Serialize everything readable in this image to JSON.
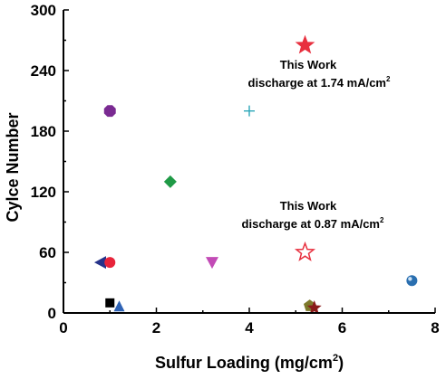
{
  "chart_data": {
    "type": "scatter",
    "title": "",
    "xlabel": "Sulfur Loading (mg/cm",
    "xlabel_sup": "2",
    "xlabel_end": ")",
    "ylabel": "Cylce Number",
    "xlim": [
      0,
      8
    ],
    "ylim": [
      0,
      300
    ],
    "x_ticks": [
      0,
      2,
      4,
      6,
      8
    ],
    "y_ticks": [
      0,
      60,
      120,
      180,
      240,
      300
    ],
    "grid": false,
    "legend": "none",
    "points": [
      {
        "x": 5.2,
        "y": 265,
        "marker": "star",
        "color": "#e8303f",
        "filled": true
      },
      {
        "x": 4.0,
        "y": 200,
        "marker": "plus",
        "color": "#2aa6b8",
        "filled": true
      },
      {
        "x": 1.0,
        "y": 200,
        "marker": "octagon",
        "color": "#7a2a92",
        "filled": true
      },
      {
        "x": 2.3,
        "y": 130,
        "marker": "diamond",
        "color": "#1f9a46",
        "filled": true
      },
      {
        "x": 5.2,
        "y": 60,
        "marker": "star",
        "color": "#e8303f",
        "filled": false
      },
      {
        "x": 0.8,
        "y": 50,
        "marker": "triangle-left",
        "color": "#26338a",
        "filled": true
      },
      {
        "x": 1.0,
        "y": 50,
        "marker": "circle",
        "color": "#e8243a",
        "filled": true
      },
      {
        "x": 3.2,
        "y": 50,
        "marker": "triangle-down",
        "color": "#c24bb6",
        "filled": true
      },
      {
        "x": 7.5,
        "y": 32,
        "marker": "sphere",
        "color": "#2a6fb0",
        "filled": true
      },
      {
        "x": 1.0,
        "y": 10,
        "marker": "square",
        "color": "#000000",
        "filled": true
      },
      {
        "x": 1.2,
        "y": 6,
        "marker": "triangle-up",
        "color": "#2f63b5",
        "filled": true
      },
      {
        "x": 5.3,
        "y": 7,
        "marker": "pentagon",
        "color": "#7e7a2c",
        "filled": true
      },
      {
        "x": 5.4,
        "y": 5,
        "marker": "star",
        "color": "#8b1a1a",
        "filled": true
      }
    ],
    "annotations": [
      {
        "line1": "This Work",
        "line2": "discharge at 1.74 mA/cm",
        "sup": "2"
      },
      {
        "line1": "This Work",
        "line2": "discharge at 0.87 mA/cm",
        "sup": "2"
      }
    ]
  }
}
